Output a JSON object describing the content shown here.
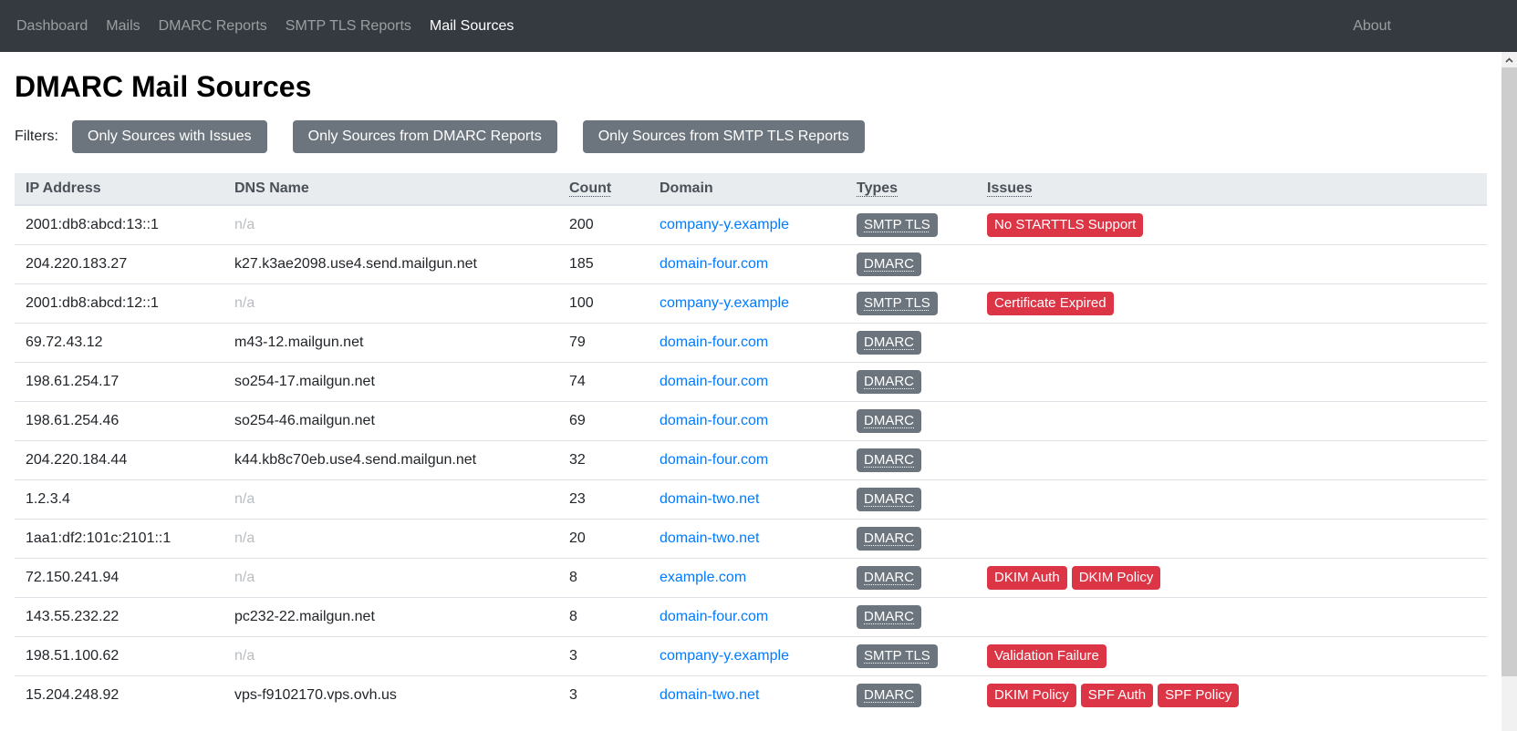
{
  "colors": {
    "navbar_bg": "#343a40",
    "badge_gray": "#6c757d",
    "badge_red": "#dc3545",
    "link_blue": "#007bff",
    "table_header_bg": "#e9ecef"
  },
  "navbar": {
    "items": [
      {
        "label": "Dashboard",
        "active": false
      },
      {
        "label": "Mails",
        "active": false
      },
      {
        "label": "DMARC Reports",
        "active": false
      },
      {
        "label": "SMTP TLS Reports",
        "active": false
      },
      {
        "label": "Mail Sources",
        "active": true
      }
    ],
    "about_label": "About"
  },
  "scrollbar": {
    "up_icon": "chevron-up"
  },
  "page": {
    "title": "DMARC Mail Sources",
    "filters_label": "Filters:",
    "filter_buttons": [
      "Only Sources with Issues",
      "Only Sources from DMARC Reports",
      "Only Sources from SMTP TLS Reports"
    ]
  },
  "table": {
    "columns": [
      {
        "label": "IP Address",
        "dotted": false
      },
      {
        "label": "DNS Name",
        "dotted": false
      },
      {
        "label": "Count",
        "dotted": true
      },
      {
        "label": "Domain",
        "dotted": false
      },
      {
        "label": "Types",
        "dotted": true
      },
      {
        "label": "Issues",
        "dotted": true
      }
    ],
    "na_label": "n/a",
    "rows": [
      {
        "ip": "2001:db8:abcd:13::1",
        "dns": null,
        "count": "200",
        "domain": "company-y.example",
        "types": [
          "SMTP TLS"
        ],
        "issues": [
          "No STARTTLS Support"
        ]
      },
      {
        "ip": "204.220.183.27",
        "dns": "k27.k3ae2098.use4.send.mailgun.net",
        "count": "185",
        "domain": "domain-four.com",
        "types": [
          "DMARC"
        ],
        "issues": []
      },
      {
        "ip": "2001:db8:abcd:12::1",
        "dns": null,
        "count": "100",
        "domain": "company-y.example",
        "types": [
          "SMTP TLS"
        ],
        "issues": [
          "Certificate Expired"
        ]
      },
      {
        "ip": "69.72.43.12",
        "dns": "m43-12.mailgun.net",
        "count": "79",
        "domain": "domain-four.com",
        "types": [
          "DMARC"
        ],
        "issues": []
      },
      {
        "ip": "198.61.254.17",
        "dns": "so254-17.mailgun.net",
        "count": "74",
        "domain": "domain-four.com",
        "types": [
          "DMARC"
        ],
        "issues": []
      },
      {
        "ip": "198.61.254.46",
        "dns": "so254-46.mailgun.net",
        "count": "69",
        "domain": "domain-four.com",
        "types": [
          "DMARC"
        ],
        "issues": []
      },
      {
        "ip": "204.220.184.44",
        "dns": "k44.kb8c70eb.use4.send.mailgun.net",
        "count": "32",
        "domain": "domain-four.com",
        "types": [
          "DMARC"
        ],
        "issues": []
      },
      {
        "ip": "1.2.3.4",
        "dns": null,
        "count": "23",
        "domain": "domain-two.net",
        "types": [
          "DMARC"
        ],
        "issues": []
      },
      {
        "ip": "1aa1:df2:101c:2101::1",
        "dns": null,
        "count": "20",
        "domain": "domain-two.net",
        "types": [
          "DMARC"
        ],
        "issues": []
      },
      {
        "ip": "72.150.241.94",
        "dns": null,
        "count": "8",
        "domain": "example.com",
        "types": [
          "DMARC"
        ],
        "issues": [
          "DKIM Auth",
          "DKIM Policy"
        ]
      },
      {
        "ip": "143.55.232.22",
        "dns": "pc232-22.mailgun.net",
        "count": "8",
        "domain": "domain-four.com",
        "types": [
          "DMARC"
        ],
        "issues": []
      },
      {
        "ip": "198.51.100.62",
        "dns": null,
        "count": "3",
        "domain": "company-y.example",
        "types": [
          "SMTP TLS"
        ],
        "issues": [
          "Validation Failure"
        ]
      },
      {
        "ip": "15.204.248.92",
        "dns": "vps-f9102170.vps.ovh.us",
        "count": "3",
        "domain": "domain-two.net",
        "types": [
          "DMARC"
        ],
        "issues": [
          "DKIM Policy",
          "SPF Auth",
          "SPF Policy"
        ]
      }
    ]
  }
}
